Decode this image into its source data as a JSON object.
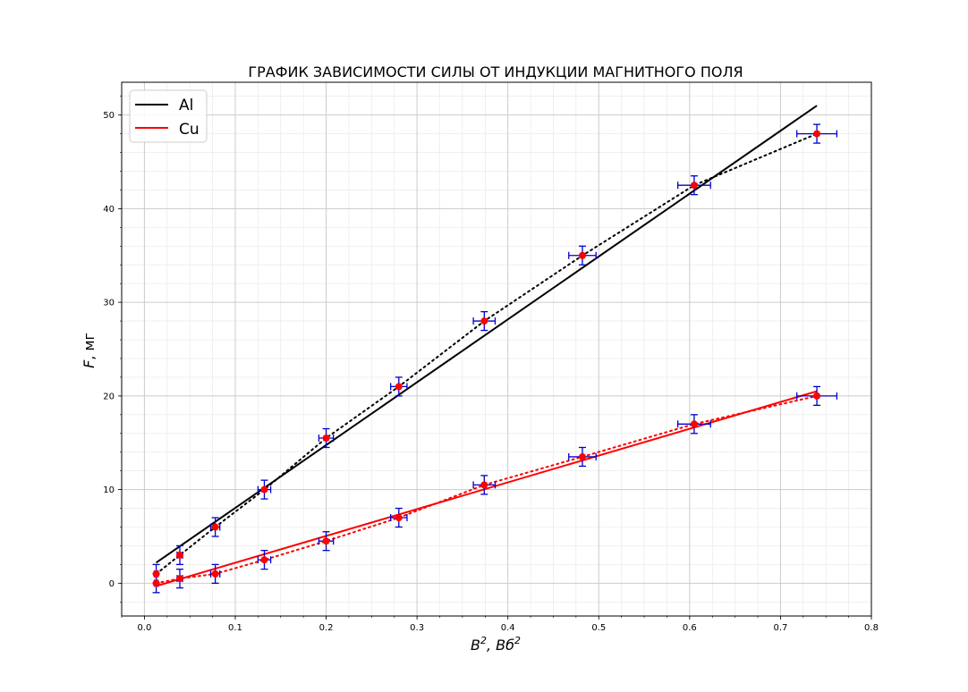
{
  "chart_data": {
    "type": "scatter",
    "title": "ГРАФИК ЗАВИСИМОСТИ СИЛЫ ОТ ИНДУКЦИИ МАГНИТНОГО ПОЛЯ",
    "xlabel_main": "B",
    "xlabel_sup": "2",
    "xlabel_unit": ", Вб",
    "xlabel_unit_sup": "2",
    "ylabel_main": "F",
    "ylabel_unit": ", мг",
    "xlim": [
      -0.025,
      0.8
    ],
    "ylim": [
      -3.5,
      53.5
    ],
    "xticks": [
      0.0,
      0.1,
      0.2,
      0.3,
      0.4,
      0.5,
      0.6,
      0.7,
      0.8
    ],
    "xtick_labels": [
      "0.0",
      "0.1",
      "0.2",
      "0.3",
      "0.4",
      "0.5",
      "0.6",
      "0.7",
      "0.8"
    ],
    "yticks": [
      0,
      10,
      20,
      30,
      40,
      50
    ],
    "ytick_labels": [
      "0",
      "10",
      "20",
      "30",
      "40",
      "50"
    ],
    "grid": true,
    "legend_position": "top-left",
    "series": [
      {
        "name": "Al",
        "color": "#000000",
        "x": [
          0.013,
          0.039,
          0.078,
          0.132,
          0.2,
          0.28,
          0.374,
          0.482,
          0.605,
          0.74
        ],
        "y": [
          1,
          3,
          6,
          10,
          15.5,
          21,
          28,
          35,
          42.5,
          48
        ],
        "xerr": [
          0.002,
          0.003,
          0.005,
          0.007,
          0.008,
          0.009,
          0.012,
          0.015,
          0.018,
          0.022
        ],
        "yerr": [
          1,
          1,
          1,
          1,
          1,
          1,
          1,
          1,
          1,
          1
        ],
        "fit": {
          "x": [
            0.013,
            0.74
          ],
          "y": [
            2.2,
            51
          ]
        }
      },
      {
        "name": "Cu",
        "color": "#ff0000",
        "x": [
          0.013,
          0.039,
          0.078,
          0.132,
          0.2,
          0.28,
          0.374,
          0.482,
          0.605,
          0.74
        ],
        "y": [
          0,
          0.5,
          1,
          2.5,
          4.5,
          7,
          10.5,
          13.5,
          17,
          20
        ],
        "xerr": [
          0.002,
          0.003,
          0.005,
          0.007,
          0.008,
          0.009,
          0.012,
          0.015,
          0.018,
          0.022
        ],
        "yerr": [
          1,
          1,
          1,
          1,
          1,
          1,
          1,
          1,
          1,
          1
        ],
        "fit": {
          "x": [
            0.013,
            0.74
          ],
          "y": [
            -0.3,
            20.5
          ]
        }
      }
    ],
    "errorbar_color": "#0000cc",
    "marker_color": "#ff0000"
  }
}
